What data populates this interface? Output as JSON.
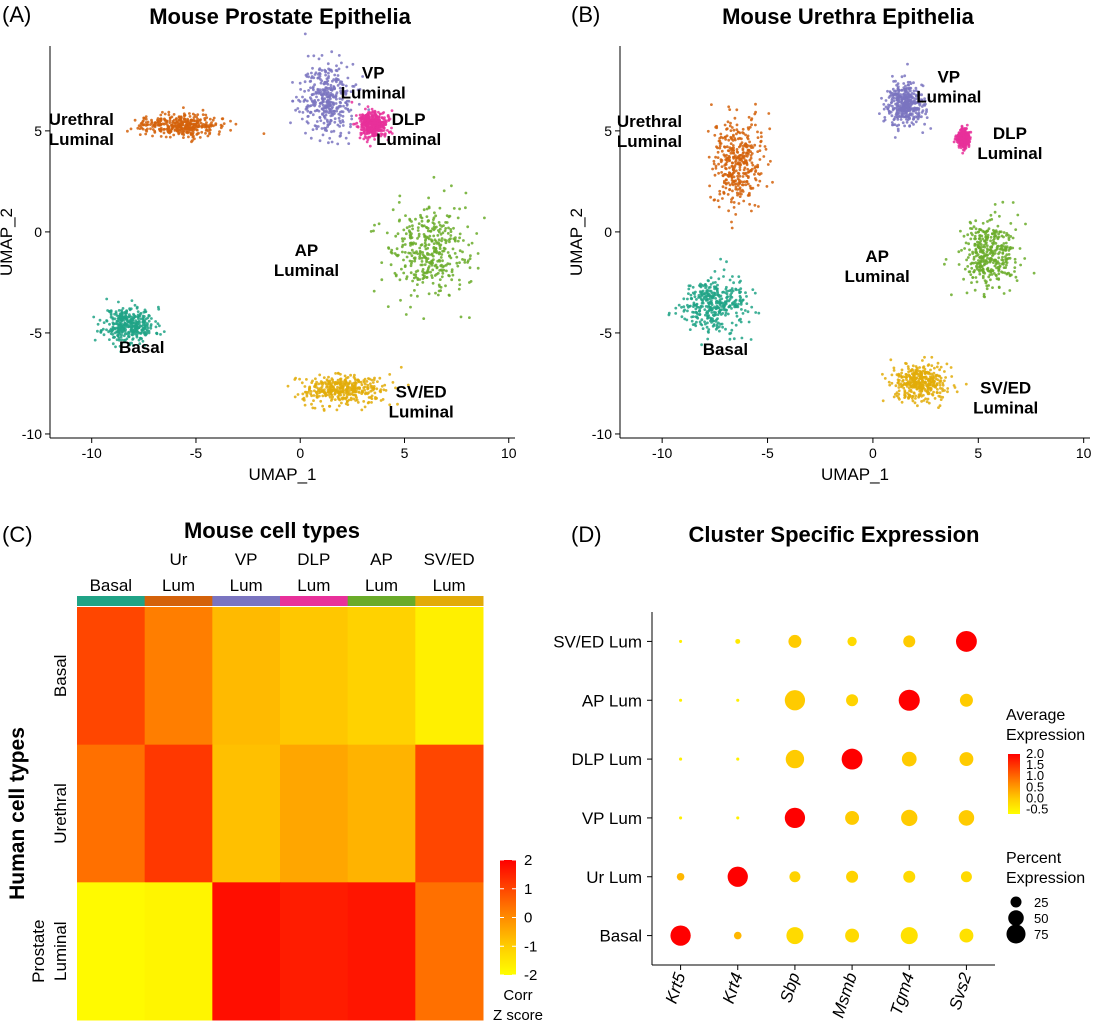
{
  "panels": {
    "A": {
      "letter": "(A)",
      "title": "Mouse Prostate Epithelia"
    },
    "B": {
      "letter": "(B)",
      "title": "Mouse Urethra Epithelia"
    },
    "C": {
      "letter": "(C)",
      "title": "Mouse cell types"
    },
    "D": {
      "letter": "(D)",
      "title": "Cluster Specific Expression"
    }
  },
  "colors": {
    "basal": "#20a386",
    "urethral": "#d4620a",
    "vp": "#7a74c0",
    "dlp": "#e8309a",
    "ap": "#6aab29",
    "sved": "#e2ab08"
  },
  "chart_data": [
    {
      "type": "scatter",
      "panel": "A",
      "title": "Mouse Prostate Epithelia",
      "xlabel": "UMAP_1",
      "ylabel": "UMAP_2",
      "xlim": [
        -12,
        10.3
      ],
      "ylim": [
        -10.2,
        9.2
      ],
      "xticks": [
        -10,
        -5,
        0,
        5,
        10
      ],
      "yticks": [
        -10,
        -5,
        0,
        5
      ],
      "grid": false,
      "clusters": [
        {
          "key": "basal",
          "label": "Basal",
          "color": "#20a386",
          "center": [
            -8.2,
            -4.6
          ],
          "spread": [
            1.1,
            0.8
          ],
          "label_pos": [
            -7.6,
            -6.0
          ]
        },
        {
          "key": "urethral",
          "label": "Urethral\nLuminal",
          "color": "#d4620a",
          "center": [
            -5.8,
            5.3
          ],
          "spread": [
            1.6,
            0.5
          ],
          "label_pos": [
            -10.5,
            5.3
          ]
        },
        {
          "key": "vp",
          "label": "VP\nLuminal",
          "color": "#7a74c0",
          "center": [
            1.3,
            6.5
          ],
          "spread": [
            1.2,
            1.6
          ],
          "label_pos": [
            3.5,
            7.6
          ]
        },
        {
          "key": "dlp",
          "label": "DLP\nLuminal",
          "color": "#e8309a",
          "center": [
            3.5,
            5.3
          ],
          "spread": [
            0.6,
            0.6
          ],
          "label_pos": [
            5.2,
            5.3
          ]
        },
        {
          "key": "ap",
          "label": "AP\nLuminal",
          "color": "#6aab29",
          "center": [
            6.2,
            -1.0
          ],
          "spread": [
            1.8,
            2.0
          ],
          "label_pos": [
            0.3,
            -1.2
          ]
        },
        {
          "key": "sved",
          "label": "SV/ED\nLuminal",
          "color": "#e2ab08",
          "center": [
            2.0,
            -7.8
          ],
          "spread": [
            1.8,
            0.7
          ],
          "label_pos": [
            5.8,
            -8.2
          ]
        }
      ]
    },
    {
      "type": "scatter",
      "panel": "B",
      "title": "Mouse Urethra Epithelia",
      "xlabel": "UMAP_1",
      "ylabel": "UMAP_2",
      "xlim": [
        -12,
        10.3
      ],
      "ylim": [
        -10.2,
        9.2
      ],
      "xticks": [
        -10,
        -5,
        0,
        5,
        10
      ],
      "yticks": [
        -10,
        -5,
        0,
        5
      ],
      "grid": false,
      "clusters": [
        {
          "key": "basal",
          "label": "Basal",
          "color": "#20a386",
          "center": [
            -7.6,
            -3.6
          ],
          "spread": [
            1.4,
            1.2
          ],
          "label_pos": [
            -7.0,
            -6.1
          ]
        },
        {
          "key": "urethral",
          "label": "Urethral\nLuminal",
          "color": "#d4620a",
          "center": [
            -6.4,
            3.5
          ],
          "spread": [
            1.1,
            2.0
          ],
          "label_pos": [
            -10.6,
            5.2
          ]
        },
        {
          "key": "vp",
          "label": "VP\nLuminal",
          "color": "#7a74c0",
          "center": [
            1.5,
            6.3
          ],
          "spread": [
            0.8,
            0.9
          ],
          "label_pos": [
            3.6,
            7.4
          ]
        },
        {
          "key": "dlp",
          "label": "DLP\nLuminal",
          "color": "#e8309a",
          "center": [
            4.3,
            4.6
          ],
          "spread": [
            0.25,
            0.4
          ],
          "label_pos": [
            6.5,
            4.6
          ]
        },
        {
          "key": "ap",
          "label": "AP\nLuminal",
          "color": "#6aab29",
          "center": [
            5.5,
            -1.0
          ],
          "spread": [
            1.2,
            1.6
          ],
          "label_pos": [
            0.2,
            -1.5
          ]
        },
        {
          "key": "sved",
          "label": "SV/ED\nLuminal",
          "color": "#e2ab08",
          "center": [
            2.2,
            -7.5
          ],
          "spread": [
            1.2,
            0.8
          ],
          "label_pos": [
            6.3,
            -8.0
          ]
        }
      ]
    },
    {
      "type": "heatmap",
      "panel": "C",
      "title": "Mouse cell types",
      "ylabel": "Human cell types",
      "columns": [
        "Basal",
        "Ur\nLum",
        "VP\nLum",
        "DLP\nLum",
        "AP\nLum",
        "SV/ED\nLum"
      ],
      "column_colors": [
        "#20a386",
        "#d4620a",
        "#7a74c0",
        "#e8309a",
        "#6aab29",
        "#e2ab08"
      ],
      "rows": [
        "Basal",
        "Urethral",
        "Prostate\nLuminal"
      ],
      "values": [
        [
          1.0,
          0.2,
          -0.7,
          -0.9,
          -1.1,
          -1.7
        ],
        [
          0.4,
          1.2,
          -0.8,
          -0.4,
          -0.6,
          1.0
        ],
        [
          -1.9,
          -1.8,
          1.8,
          1.6,
          1.7,
          0.4
        ]
      ],
      "colorbar": {
        "title": "Corr\nZ score",
        "ticks": [
          2,
          1,
          0,
          -1,
          -2
        ],
        "range": [
          -2,
          2
        ]
      }
    },
    {
      "type": "scatter",
      "subtype": "dotplot",
      "panel": "D",
      "title": "Cluster Specific Expression",
      "genes": [
        "Krt5",
        "Krt4",
        "Sbp",
        "Msmb",
        "Tgm4",
        "Svs2"
      ],
      "clusters": [
        "SV/ED Lum",
        "AP Lum",
        "DLP Lum",
        "VP Lum",
        "Ur Lum",
        "Basal"
      ],
      "avg_expression": [
        [
          -0.5,
          -0.4,
          0.0,
          -0.2,
          0.0,
          2.0
        ],
        [
          -0.5,
          -0.5,
          0.0,
          -0.1,
          2.0,
          0.0
        ],
        [
          -0.5,
          -0.5,
          0.0,
          2.0,
          0.0,
          0.0
        ],
        [
          -0.5,
          -0.5,
          2.0,
          0.0,
          0.0,
          0.0
        ],
        [
          0.2,
          2.0,
          -0.1,
          -0.1,
          -0.2,
          -0.2
        ],
        [
          2.0,
          0.2,
          -0.2,
          -0.2,
          -0.3,
          -0.3
        ]
      ],
      "pct_expression": [
        [
          2,
          5,
          35,
          18,
          30,
          90
        ],
        [
          2,
          2,
          85,
          30,
          92,
          35
        ],
        [
          2,
          2,
          70,
          90,
          45,
          40
        ],
        [
          2,
          2,
          85,
          40,
          55,
          50
        ],
        [
          12,
          85,
          25,
          30,
          30,
          25
        ],
        [
          85,
          12,
          60,
          40,
          60,
          40
        ]
      ],
      "legend_expression": {
        "title": "Average\nExpression",
        "ticks": [
          2.0,
          1.5,
          1.0,
          0.5,
          0.0,
          -0.5
        ],
        "range": [
          -0.7,
          2.0
        ]
      },
      "legend_percent": {
        "title": "Percent\nExpression",
        "ticks": [
          25,
          50,
          75
        ]
      }
    }
  ]
}
